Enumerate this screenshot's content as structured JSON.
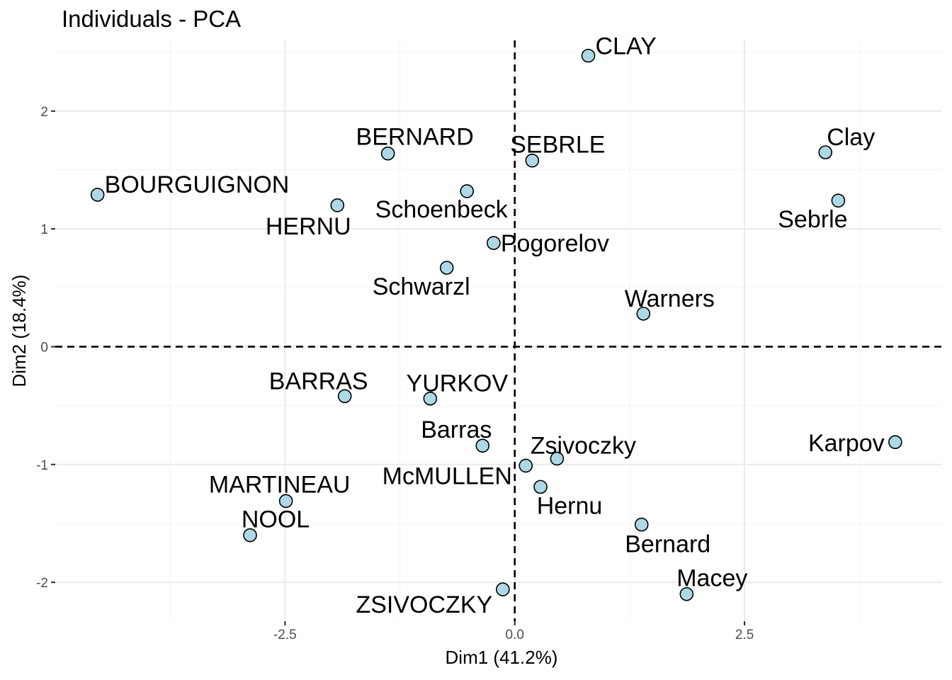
{
  "chart_data": {
    "type": "scatter",
    "title": "Individuals - PCA",
    "xlabel": "Dim1 (41.2%)",
    "ylabel": "Dim2 (18.4%)",
    "xlim": [
      -5.0,
      4.65
    ],
    "ylim": [
      -2.33,
      2.6
    ],
    "xticks": [
      -2.5,
      0.0,
      2.5
    ],
    "xtick_labels": [
      "-2.5",
      "0.0",
      "2.5"
    ],
    "yticks": [
      -2,
      -1,
      0,
      1,
      2
    ],
    "ytick_labels": [
      "-2",
      "-1",
      "0",
      "1",
      "2"
    ],
    "grid": true,
    "reference_lines": {
      "x": 0,
      "y": 0
    },
    "point_color": "#add8e6",
    "points": [
      {
        "label": "CLAY",
        "x": 0.8,
        "y": 2.47,
        "anchor": "start",
        "dx": 10,
        "dy": -2
      },
      {
        "label": "BERNARD",
        "x": -1.38,
        "y": 1.64,
        "anchor": "middle",
        "dx": 38,
        "dy": -12
      },
      {
        "label": "SEBRLE",
        "x": 0.19,
        "y": 1.58,
        "anchor": "middle",
        "dx": 36,
        "dy": -11
      },
      {
        "label": "Clay",
        "x": 3.38,
        "y": 1.65,
        "anchor": "middle",
        "dx": 36,
        "dy": -10
      },
      {
        "label": "BOURGUIGNON",
        "x": -4.54,
        "y": 1.29,
        "anchor": "start",
        "dx": 10,
        "dy": -3
      },
      {
        "label": "Schoenbeck",
        "x": -0.52,
        "y": 1.32,
        "anchor": "middle",
        "dx": -36,
        "dy": 37
      },
      {
        "label": "HERNU",
        "x": -1.93,
        "y": 1.2,
        "anchor": "middle",
        "dx": -41,
        "dy": 41
      },
      {
        "label": "Sebrle",
        "x": 3.52,
        "y": 1.24,
        "anchor": "middle",
        "dx": -36,
        "dy": 38
      },
      {
        "label": "Pogorelov",
        "x": -0.23,
        "y": 0.88,
        "anchor": "start",
        "dx": 10,
        "dy": 12
      },
      {
        "label": "Schwarzl",
        "x": -0.74,
        "y": 0.67,
        "anchor": "middle",
        "dx": -36,
        "dy": 38
      },
      {
        "label": "Warners",
        "x": 1.4,
        "y": 0.28,
        "anchor": "middle",
        "dx": 37,
        "dy": -10
      },
      {
        "label": "BARRAS",
        "x": -1.85,
        "y": -0.42,
        "anchor": "middle",
        "dx": -37,
        "dy": -10
      },
      {
        "label": "YURKOV",
        "x": -0.92,
        "y": -0.44,
        "anchor": "middle",
        "dx": 38,
        "dy": -10
      },
      {
        "label": "Barras",
        "x": -0.35,
        "y": -0.84,
        "anchor": "middle",
        "dx": -37,
        "dy": -11
      },
      {
        "label": "Zsivoczky",
        "x": 0.46,
        "y": -0.95,
        "anchor": "middle",
        "dx": 37,
        "dy": -7
      },
      {
        "label": "Karpov",
        "x": 4.14,
        "y": -0.81,
        "anchor": "middle",
        "dx": -69,
        "dy": 13
      },
      {
        "label": "McMULLEN",
        "x": 0.12,
        "y": -1.01,
        "anchor": "middle",
        "dx": -111,
        "dy": 26
      },
      {
        "label": "Hernu",
        "x": 0.28,
        "y": -1.19,
        "anchor": "middle",
        "dx": 41,
        "dy": 38
      },
      {
        "label": "MARTINEAU",
        "x": -2.49,
        "y": -1.31,
        "anchor": "middle",
        "dx": -9,
        "dy": -12
      },
      {
        "label": "NOOL",
        "x": -2.88,
        "y": -1.6,
        "anchor": "middle",
        "dx": 36,
        "dy": -11
      },
      {
        "label": "Bernard",
        "x": 1.38,
        "y": -1.51,
        "anchor": "middle",
        "dx": 37,
        "dy": 39
      },
      {
        "label": "Macey",
        "x": 1.87,
        "y": -2.1,
        "anchor": "middle",
        "dx": 36,
        "dy": -11
      },
      {
        "label": "ZSIVOCZKY",
        "x": -0.13,
        "y": -2.06,
        "anchor": "middle",
        "dx": -111,
        "dy": 33
      }
    ]
  }
}
